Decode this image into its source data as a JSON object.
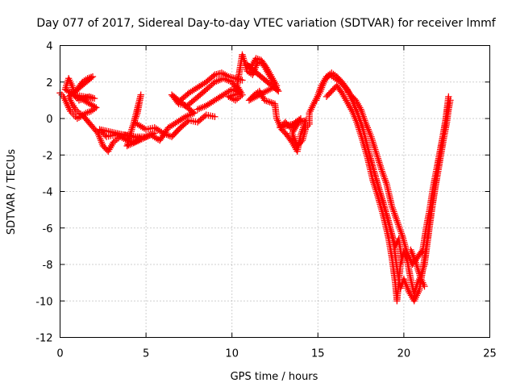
{
  "chart_data": {
    "type": "scatter",
    "title": "Day 077 of 2017, Sidereal Day-to-day VTEC variation (SDTVAR) for receiver lmmf",
    "xlabel": "GPS time / hours",
    "ylabel": "SDTVAR / TECUs",
    "xlim": [
      0,
      25
    ],
    "ylim": [
      -12,
      4
    ],
    "x_ticks": [
      "0",
      "5",
      "10",
      "15",
      "20",
      "25"
    ],
    "y_ticks": [
      "4",
      "2",
      "0",
      "-2",
      "-4",
      "-6",
      "-8",
      "-10",
      "-12"
    ],
    "grid": true,
    "marker": "+",
    "color": "#ff0000",
    "series": [
      {
        "trace_points": [
          [
            0.0,
            1.4
          ],
          [
            0.2,
            1.2
          ],
          [
            0.4,
            0.8
          ],
          [
            0.6,
            0.4
          ],
          [
            0.8,
            0.2
          ],
          [
            1.0,
            0.0
          ],
          [
            1.2,
            0.1
          ],
          [
            1.5,
            0.3
          ],
          [
            1.8,
            0.4
          ],
          [
            2.1,
            0.6
          ],
          [
            0.3,
            1.6
          ],
          [
            0.5,
            2.2
          ],
          [
            0.7,
            1.8
          ],
          [
            0.9,
            1.2
          ],
          [
            1.1,
            1.0
          ],
          [
            1.4,
            1.1
          ],
          [
            1.7,
            1.2
          ],
          [
            2.0,
            1.1
          ],
          [
            0.8,
            1.3
          ],
          [
            1.0,
            1.6
          ],
          [
            1.3,
            2.0
          ],
          [
            1.6,
            2.2
          ],
          [
            1.9,
            2.3
          ],
          [
            0.5,
            1.2
          ],
          [
            0.7,
            0.8
          ],
          [
            0.9,
            0.5
          ],
          [
            1.1,
            0.3
          ],
          [
            1.3,
            0.2
          ],
          [
            2.2,
            -0.8
          ],
          [
            2.5,
            -1.5
          ],
          [
            2.8,
            -1.8
          ],
          [
            3.1,
            -1.3
          ],
          [
            3.5,
            -1.0
          ],
          [
            3.9,
            -1.2
          ],
          [
            4.3,
            -1.3
          ],
          [
            4.7,
            -1.1
          ],
          [
            2.3,
            -0.6
          ],
          [
            2.7,
            -1.0
          ],
          [
            3.2,
            -0.9
          ],
          [
            3.8,
            -0.9
          ],
          [
            4.4,
            -1.0
          ],
          [
            5.0,
            -1.0
          ],
          [
            5.5,
            -0.8
          ],
          [
            3.9,
            -1.5
          ],
          [
            4.2,
            -0.5
          ],
          [
            4.5,
            0.3
          ],
          [
            4.7,
            1.3
          ],
          [
            4.3,
            -0.2
          ],
          [
            5.0,
            -0.6
          ],
          [
            5.5,
            -0.5
          ],
          [
            6.0,
            -0.8
          ],
          [
            6.5,
            -1.0
          ],
          [
            7.0,
            -0.5
          ],
          [
            7.5,
            -0.1
          ],
          [
            8.0,
            -0.2
          ],
          [
            8.5,
            0.2
          ],
          [
            9.0,
            0.1
          ],
          [
            5.3,
            -0.9
          ],
          [
            5.8,
            -1.2
          ],
          [
            6.3,
            -0.5
          ],
          [
            6.8,
            -0.2
          ],
          [
            7.3,
            0.1
          ],
          [
            7.8,
            0.3
          ],
          [
            6.5,
            1.3
          ],
          [
            6.9,
            0.8
          ],
          [
            7.4,
            0.7
          ],
          [
            7.9,
            1.1
          ],
          [
            8.4,
            1.5
          ],
          [
            9.0,
            2.0
          ],
          [
            9.5,
            2.2
          ],
          [
            10.0,
            2.0
          ],
          [
            10.4,
            1.5
          ],
          [
            7.0,
            1.0
          ],
          [
            7.5,
            1.4
          ],
          [
            8.0,
            1.7
          ],
          [
            8.5,
            2.0
          ],
          [
            9.0,
            2.4
          ],
          [
            9.4,
            2.5
          ],
          [
            9.8,
            2.3
          ],
          [
            10.2,
            2.2
          ],
          [
            10.6,
            2.1
          ],
          [
            8.0,
            0.5
          ],
          [
            8.5,
            0.7
          ],
          [
            9.0,
            1.0
          ],
          [
            9.5,
            1.3
          ],
          [
            10.0,
            1.6
          ],
          [
            10.5,
            1.4
          ],
          [
            9.8,
            1.2
          ],
          [
            10.2,
            1.0
          ],
          [
            10.6,
            1.3
          ],
          [
            10.3,
            1.8
          ],
          [
            10.6,
            3.5
          ],
          [
            10.9,
            2.6
          ],
          [
            11.2,
            2.4
          ],
          [
            11.5,
            3.1
          ],
          [
            11.8,
            3.0
          ],
          [
            12.1,
            2.5
          ],
          [
            12.4,
            2.0
          ],
          [
            12.7,
            1.5
          ],
          [
            10.8,
            3.0
          ],
          [
            11.1,
            2.8
          ],
          [
            11.4,
            3.3
          ],
          [
            11.7,
            3.2
          ],
          [
            12.0,
            2.8
          ],
          [
            12.3,
            2.3
          ],
          [
            12.6,
            1.8
          ],
          [
            11.0,
            1.0
          ],
          [
            11.3,
            1.3
          ],
          [
            11.6,
            1.5
          ],
          [
            11.9,
            1.0
          ],
          [
            12.2,
            0.9
          ],
          [
            12.5,
            0.8
          ],
          [
            12.6,
            0.0
          ],
          [
            12.9,
            -0.6
          ],
          [
            13.2,
            -0.9
          ],
          [
            13.5,
            -1.3
          ],
          [
            13.8,
            -1.8
          ],
          [
            14.0,
            -0.9
          ],
          [
            14.3,
            -0.1
          ],
          [
            12.8,
            -0.5
          ],
          [
            13.1,
            -0.2
          ],
          [
            13.4,
            -0.5
          ],
          [
            13.7,
            -0.2
          ],
          [
            14.0,
            0.0
          ],
          [
            13.5,
            -0.8
          ],
          [
            13.8,
            -1.5
          ],
          [
            14.1,
            -1.2
          ],
          [
            14.3,
            -0.5
          ],
          [
            14.5,
            -0.3
          ],
          [
            14.5,
            0.3
          ],
          [
            14.8,
            0.9
          ],
          [
            15.1,
            1.4
          ],
          [
            15.4,
            2.1
          ],
          [
            15.7,
            2.4
          ],
          [
            16.0,
            2.2
          ],
          [
            16.3,
            2.0
          ],
          [
            16.6,
            1.7
          ],
          [
            16.9,
            1.3
          ],
          [
            17.2,
            1.0
          ],
          [
            17.5,
            0.5
          ],
          [
            17.8,
            -0.3
          ],
          [
            18.1,
            -1.0
          ],
          [
            18.4,
            -1.9
          ],
          [
            18.7,
            -2.8
          ],
          [
            19.0,
            -3.6
          ],
          [
            19.3,
            -4.8
          ],
          [
            19.6,
            -5.6
          ],
          [
            19.9,
            -6.4
          ],
          [
            20.2,
            -7.4
          ],
          [
            20.5,
            -8.0
          ],
          [
            20.8,
            -7.6
          ],
          [
            21.1,
            -7.2
          ],
          [
            21.3,
            -6.0
          ],
          [
            21.5,
            -5.0
          ],
          [
            21.7,
            -3.8
          ],
          [
            21.9,
            -2.8
          ],
          [
            22.1,
            -1.8
          ],
          [
            22.3,
            -0.8
          ],
          [
            22.5,
            0.3
          ],
          [
            22.6,
            0.8
          ],
          [
            14.9,
            1.0
          ],
          [
            15.2,
            1.8
          ],
          [
            15.5,
            2.3
          ],
          [
            15.8,
            2.5
          ],
          [
            16.1,
            2.3
          ],
          [
            16.4,
            2.0
          ],
          [
            16.7,
            1.6
          ],
          [
            17.0,
            1.0
          ],
          [
            17.3,
            0.3
          ],
          [
            17.6,
            -0.5
          ],
          [
            17.9,
            -1.6
          ],
          [
            18.2,
            -2.7
          ],
          [
            18.5,
            -3.7
          ],
          [
            18.8,
            -4.6
          ],
          [
            19.1,
            -5.6
          ],
          [
            19.4,
            -6.8
          ],
          [
            19.6,
            -8.2
          ],
          [
            19.8,
            -9.3
          ],
          [
            20.0,
            -8.8
          ],
          [
            20.3,
            -9.5
          ],
          [
            20.6,
            -10.0
          ],
          [
            20.9,
            -9.4
          ],
          [
            21.1,
            -8.3
          ],
          [
            21.3,
            -7.0
          ],
          [
            21.5,
            -5.6
          ],
          [
            21.7,
            -4.5
          ],
          [
            21.9,
            -3.4
          ],
          [
            22.1,
            -2.3
          ],
          [
            22.3,
            -1.2
          ],
          [
            22.5,
            -0.2
          ],
          [
            22.6,
            0.5
          ],
          [
            22.7,
            1.0
          ],
          [
            15.5,
            1.2
          ],
          [
            15.8,
            1.5
          ],
          [
            16.1,
            1.8
          ],
          [
            16.4,
            1.4
          ],
          [
            16.7,
            0.9
          ],
          [
            17.0,
            0.4
          ],
          [
            17.3,
            -0.3
          ],
          [
            17.6,
            -1.2
          ],
          [
            17.9,
            -2.2
          ],
          [
            18.2,
            -3.4
          ],
          [
            18.5,
            -4.3
          ],
          [
            18.8,
            -5.3
          ],
          [
            19.1,
            -6.5
          ],
          [
            19.3,
            -7.6
          ],
          [
            19.5,
            -9.0
          ],
          [
            19.6,
            -10.0
          ],
          [
            19.8,
            -8.0
          ],
          [
            20.0,
            -7.3
          ],
          [
            20.2,
            -7.8
          ],
          [
            20.4,
            -8.8
          ],
          [
            20.6,
            -9.6
          ],
          [
            20.8,
            -9.0
          ],
          [
            21.0,
            -8.6
          ],
          [
            21.2,
            -8.0
          ],
          [
            21.4,
            -6.6
          ],
          [
            21.6,
            -5.2
          ],
          [
            21.8,
            -3.9
          ],
          [
            22.0,
            -2.6
          ],
          [
            22.2,
            -1.4
          ],
          [
            22.4,
            -0.3
          ],
          [
            22.6,
            1.2
          ],
          [
            20.4,
            -7.2
          ],
          [
            20.7,
            -7.9
          ],
          [
            21.0,
            -8.8
          ],
          [
            21.2,
            -9.2
          ],
          [
            18.0,
            -2.0
          ],
          [
            18.3,
            -3.0
          ],
          [
            18.6,
            -4.0
          ],
          [
            18.9,
            -5.0
          ],
          [
            19.2,
            -6.0
          ],
          [
            19.5,
            -7.0
          ],
          [
            19.7,
            -6.6
          ],
          [
            19.9,
            -7.8
          ]
        ]
      }
    ]
  }
}
